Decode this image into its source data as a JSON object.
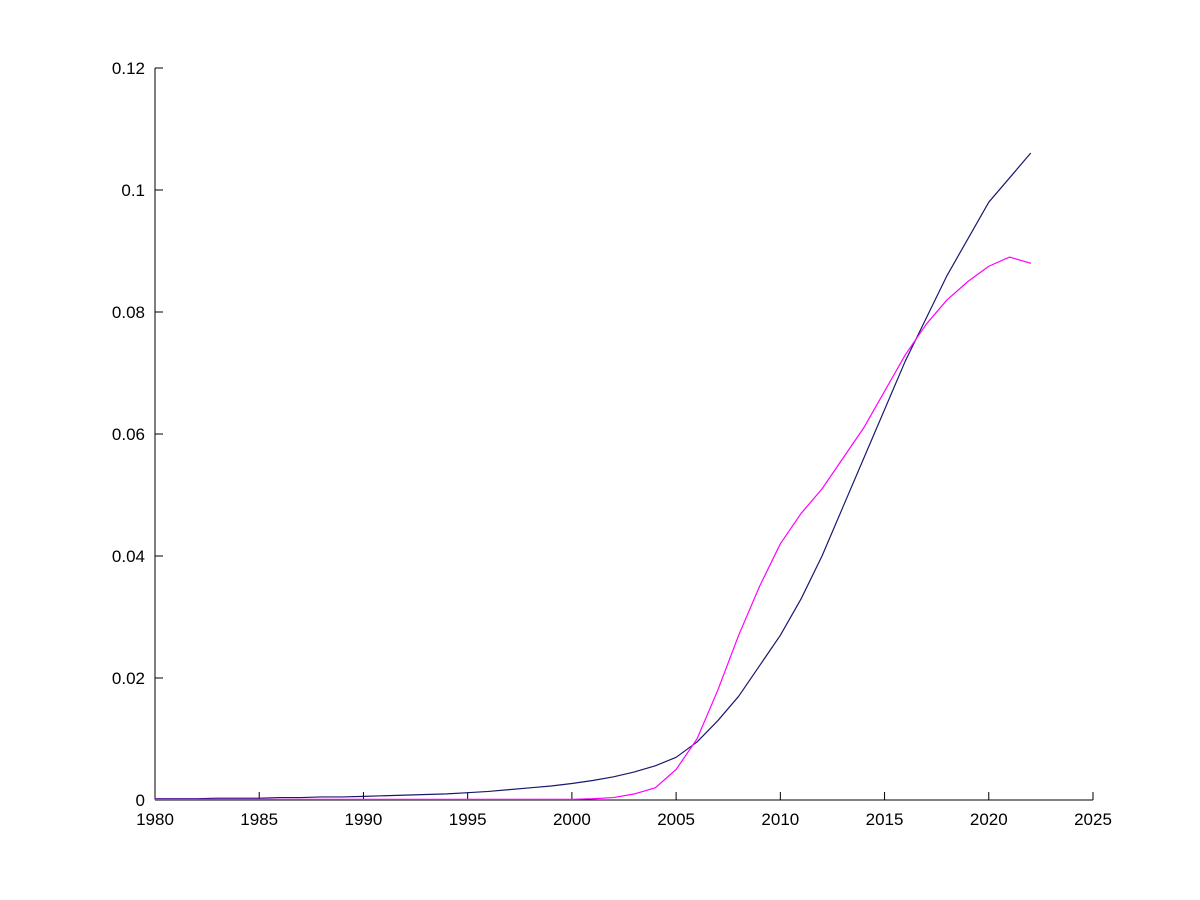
{
  "page": {
    "background": "#ffffff"
  },
  "chart_data": {
    "type": "line",
    "title": "",
    "xlabel": "",
    "ylabel": "",
    "grid": false,
    "legend": null,
    "axis_color": "#000000",
    "xlim": [
      1980,
      2025
    ],
    "ylim": [
      0,
      0.12
    ],
    "xticks": {
      "values": [
        1980,
        1985,
        1990,
        1995,
        2000,
        2005,
        2010,
        2015,
        2020,
        2025
      ],
      "labels": [
        "1980",
        "1985",
        "1990",
        "1995",
        "2000",
        "2005",
        "2010",
        "2015",
        "2020",
        "2025"
      ]
    },
    "yticks": {
      "values": [
        0,
        0.02,
        0.04,
        0.06,
        0.08,
        0.1,
        0.12
      ],
      "labels": [
        "0",
        "0.02",
        "0.04",
        "0.06",
        "0.08",
        "0.1",
        "0.12"
      ]
    },
    "x": [
      1980,
      1981,
      1982,
      1983,
      1984,
      1985,
      1986,
      1987,
      1988,
      1989,
      1990,
      1991,
      1992,
      1993,
      1994,
      1995,
      1996,
      1997,
      1998,
      1999,
      2000,
      2001,
      2002,
      2003,
      2004,
      2005,
      2006,
      2007,
      2008,
      2009,
      2010,
      2011,
      2012,
      2013,
      2014,
      2015,
      2016,
      2017,
      2018,
      2019,
      2020,
      2021,
      2022
    ],
    "series": [
      {
        "name": "series-blue",
        "color": "#191970",
        "values": [
          0.0002,
          0.0002,
          0.0002,
          0.0003,
          0.0003,
          0.0003,
          0.0004,
          0.0004,
          0.0005,
          0.0005,
          0.0006,
          0.0007,
          0.0008,
          0.0009,
          0.001,
          0.0012,
          0.0014,
          0.0017,
          0.002,
          0.0023,
          0.0027,
          0.0032,
          0.0038,
          0.0046,
          0.0056,
          0.007,
          0.0095,
          0.013,
          0.017,
          0.022,
          0.027,
          0.033,
          0.04,
          0.048,
          0.056,
          0.064,
          0.072,
          0.079,
          0.086,
          0.092,
          0.098,
          0.102,
          0.106
        ]
      },
      {
        "name": "series-magenta",
        "color": "#FF00FF",
        "values": [
          0.0001,
          0.0001,
          0.0001,
          0.0001,
          0.0001,
          0.0001,
          0.0001,
          0.0001,
          0.0001,
          0.0001,
          0.0001,
          0.0001,
          0.0001,
          0.0001,
          0.0001,
          0.0001,
          0.0001,
          0.0001,
          0.0001,
          0.0001,
          0.0001,
          0.0002,
          0.0004,
          0.001,
          0.002,
          0.005,
          0.01,
          0.018,
          0.027,
          0.035,
          0.042,
          0.047,
          0.051,
          0.056,
          0.061,
          0.067,
          0.073,
          0.078,
          0.082,
          0.085,
          0.0875,
          0.089,
          0.088
        ]
      }
    ]
  }
}
